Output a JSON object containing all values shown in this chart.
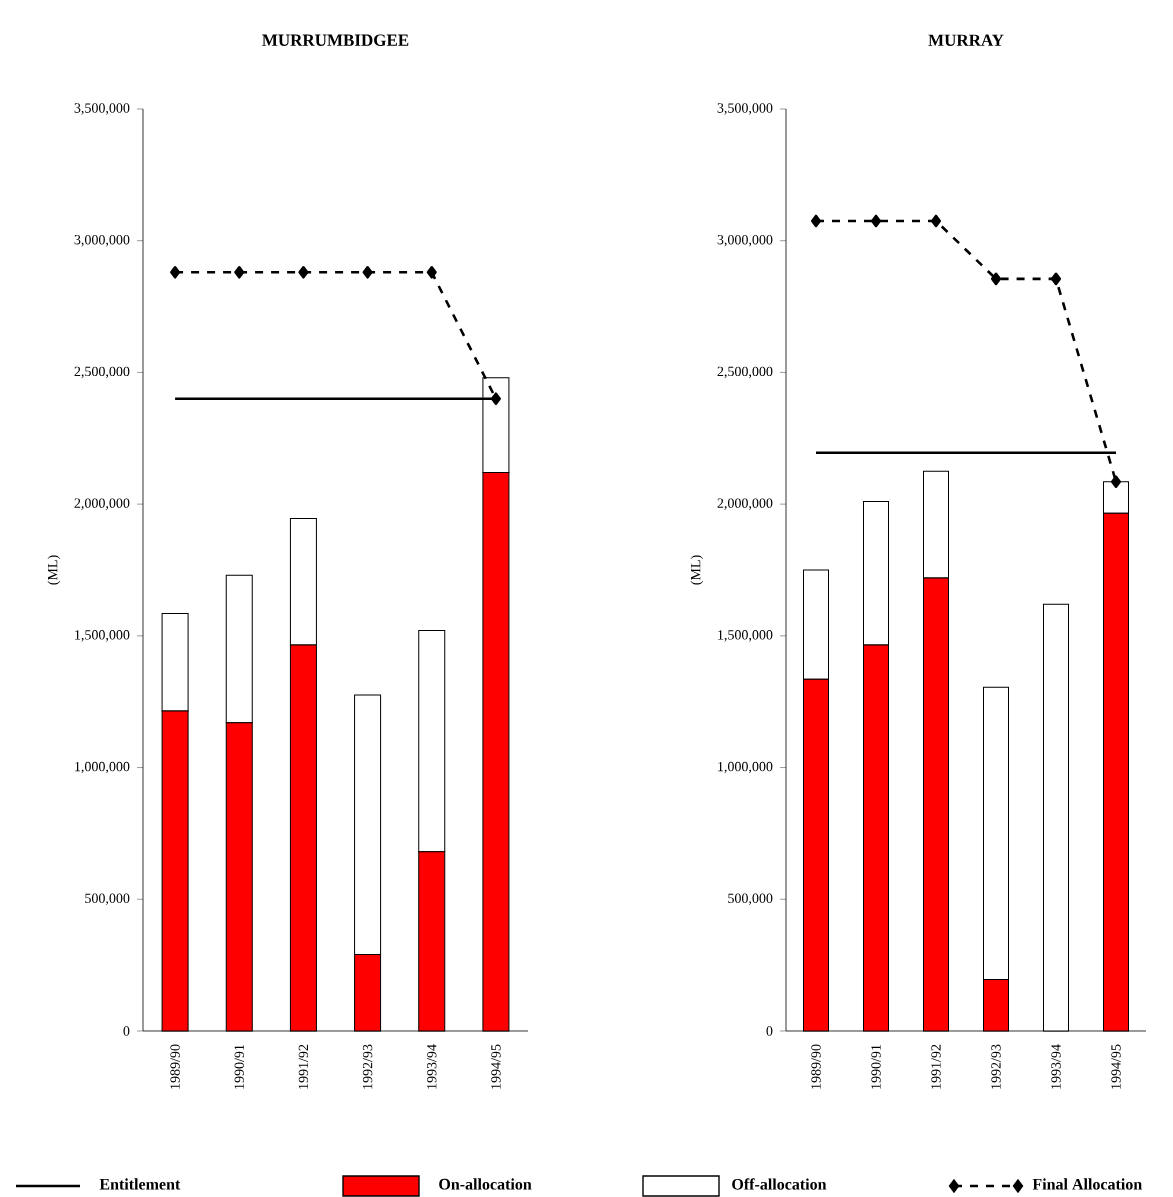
{
  "chart_data": [
    {
      "type": "bar",
      "title": "MURRUMBIDGEE",
      "ylabel": "(ML)",
      "stacked": true,
      "legend": "bottom",
      "categories": [
        "1989/90",
        "1990/91",
        "1991/92",
        "1992/93",
        "1993/94",
        "1994/95"
      ],
      "ylim": [
        0,
        3500000
      ],
      "yticks": [
        0,
        {
          "value": 500000,
          "label": "500,000"
        },
        {
          "value": 1000000,
          "label": "1,000,000"
        },
        {
          "value": 1500000,
          "label": "1,500,000"
        },
        {
          "value": 2000000,
          "label": "2,000,000"
        },
        {
          "value": 2500000,
          "label": "2,500,000"
        },
        {
          "value": 3000000,
          "label": "3,000,000"
        },
        {
          "value": 3500000,
          "label": "3,500,000"
        }
      ],
      "series": [
        {
          "name": "Entitlement",
          "type": "line",
          "color": "#000000",
          "line_style": "solid",
          "marker": "none",
          "values": [
            2400000,
            2400000,
            2400000,
            2400000,
            2400000,
            2400000
          ]
        },
        {
          "name": "On-allocation",
          "type": "bar",
          "color": "#ff0000",
          "values": [
            1215000,
            1170000,
            1465000,
            290000,
            680000,
            2120000
          ]
        },
        {
          "name": "Off-allocation",
          "type": "bar",
          "color": "#ffffff",
          "values": [
            370000,
            560000,
            480000,
            985000,
            840000,
            360000
          ]
        },
        {
          "name": "Final Allocation",
          "type": "line",
          "color": "#000000",
          "line_style": "dashed",
          "marker": "diamond",
          "values": [
            2880000,
            2880000,
            2880000,
            2880000,
            2880000,
            2400000
          ]
        }
      ]
    },
    {
      "type": "bar",
      "title": "MURRAY",
      "ylabel": "(ML)",
      "stacked": true,
      "categories": [
        "1989/90",
        "1990/91",
        "1991/92",
        "1992/93",
        "1993/94",
        "1994/95"
      ],
      "ylim": [
        0,
        3500000
      ],
      "yticks": [
        0,
        {
          "value": 500000,
          "label": "500,000"
        },
        {
          "value": 1000000,
          "label": "1,000,000"
        },
        {
          "value": 1500000,
          "label": "1,500,000"
        },
        {
          "value": 2000000,
          "label": "2,000,000"
        },
        {
          "value": 2500000,
          "label": "2,500,000"
        },
        {
          "value": 3000000,
          "label": "3,000,000"
        },
        {
          "value": 3500000,
          "label": "3,500,000"
        }
      ],
      "series": [
        {
          "type": "line",
          "color": "#000000",
          "line_style": "solid",
          "marker": "none",
          "values": [
            2195000,
            2195000,
            2195000,
            2195000,
            2195000,
            2195000
          ]
        },
        {
          "type": "bar",
          "color": "#ff0000",
          "values": [
            1335000,
            1465000,
            1720000,
            195000,
            0,
            1965000
          ]
        },
        {
          "type": "bar",
          "color": "#ffffff",
          "values": [
            415000,
            545000,
            405000,
            1110000,
            1620000,
            120000
          ]
        },
        {
          "type": "line",
          "color": "#000000",
          "line_style": "dashed",
          "marker": "diamond",
          "values": [
            3075000,
            3075000,
            3075000,
            2855000,
            2855000,
            2085000
          ]
        }
      ]
    }
  ]
}
